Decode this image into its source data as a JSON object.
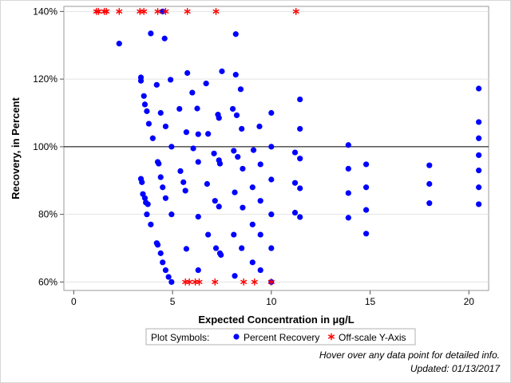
{
  "chart_data": {
    "type": "scatter",
    "xlabel": "Expected Concentration in µg/L",
    "ylabel": "Recovery, in Percent",
    "xlim": [
      -0.5,
      21
    ],
    "ylim": [
      57.5,
      141.5
    ],
    "x_ticks": [
      0,
      5,
      10,
      15,
      20
    ],
    "x_tick_labels": [
      "0",
      "5",
      "10",
      "15",
      "20"
    ],
    "y_ticks": [
      60,
      80,
      100,
      120,
      140
    ],
    "y_tick_labels": [
      "60%",
      "80%",
      "100%",
      "120%",
      "140%"
    ],
    "reference_line_y": 100,
    "grid": "horizontal",
    "legend": {
      "title": "Plot Symbols:",
      "placement": "bottom-center",
      "entries": [
        {
          "label": "Percent Recovery",
          "marker": "circle",
          "color": "#0000ff"
        },
        {
          "label": "Off-scale Y-Axis",
          "marker": "asterisk",
          "color": "#ff0000"
        }
      ]
    },
    "series": [
      {
        "name": "Percent Recovery",
        "marker": "circle",
        "color": "#0000ff",
        "points": [
          [
            2.3,
            130.5
          ],
          [
            3.4,
            120.5
          ],
          [
            3.4,
            119.5
          ],
          [
            3.55,
            115
          ],
          [
            3.6,
            112.5
          ],
          [
            3.7,
            110.5
          ],
          [
            3.8,
            106.8
          ],
          [
            3.9,
            133.5
          ],
          [
            4.0,
            102.5
          ],
          [
            3.4,
            90.5
          ],
          [
            3.45,
            89.5
          ],
          [
            3.5,
            86
          ],
          [
            3.6,
            84.8
          ],
          [
            3.65,
            83.5
          ],
          [
            3.7,
            80
          ],
          [
            3.75,
            83
          ],
          [
            3.9,
            77
          ],
          [
            4.2,
            71.5
          ],
          [
            4.25,
            71
          ],
          [
            4.4,
            68.5
          ],
          [
            4.5,
            65.8
          ],
          [
            4.65,
            63.5
          ],
          [
            4.8,
            61.5
          ],
          [
            4.95,
            60
          ],
          [
            4.25,
            95.5
          ],
          [
            4.3,
            95
          ],
          [
            4.4,
            91
          ],
          [
            4.5,
            88
          ],
          [
            4.65,
            84.8
          ],
          [
            4.2,
            118.3
          ],
          [
            4.4,
            110
          ],
          [
            4.6,
            132
          ],
          [
            4.65,
            106
          ],
          [
            4.9,
            119.8
          ],
          [
            4.95,
            100
          ],
          [
            4.95,
            80
          ],
          [
            4.5,
            140
          ],
          [
            5.35,
            111.2
          ],
          [
            5.4,
            92.8
          ],
          [
            5.55,
            89.5
          ],
          [
            5.65,
            87
          ],
          [
            5.7,
            104.3
          ],
          [
            5.75,
            121.8
          ],
          [
            5.7,
            69.8
          ],
          [
            6.0,
            116
          ],
          [
            6.05,
            99.5
          ],
          [
            6.25,
            111.3
          ],
          [
            6.3,
            103.7
          ],
          [
            6.3,
            95.5
          ],
          [
            6.3,
            79.3
          ],
          [
            6.3,
            63.5
          ],
          [
            6.7,
            118.7
          ],
          [
            6.8,
            103.8
          ],
          [
            6.75,
            89
          ],
          [
            6.8,
            74
          ],
          [
            7.1,
            98
          ],
          [
            7.15,
            84
          ],
          [
            7.2,
            70
          ],
          [
            7.3,
            109.5
          ],
          [
            7.35,
            108.5
          ],
          [
            7.35,
            96
          ],
          [
            7.4,
            95
          ],
          [
            7.35,
            82.3
          ],
          [
            7.4,
            68.5
          ],
          [
            7.45,
            68
          ],
          [
            7.5,
            122.3
          ],
          [
            8.05,
            111.2
          ],
          [
            8.1,
            98.8
          ],
          [
            8.15,
            86.5
          ],
          [
            8.1,
            74
          ],
          [
            8.15,
            61.8
          ],
          [
            8.2,
            133.3
          ],
          [
            8.2,
            121.3
          ],
          [
            8.25,
            109.3
          ],
          [
            8.3,
            97
          ],
          [
            8.45,
            117
          ],
          [
            8.5,
            105.3
          ],
          [
            8.55,
            93.5
          ],
          [
            8.55,
            82
          ],
          [
            8.5,
            70
          ],
          [
            9.1,
            99
          ],
          [
            9.05,
            88
          ],
          [
            9.05,
            77
          ],
          [
            9.05,
            65.8
          ],
          [
            9.4,
            106
          ],
          [
            9.45,
            94.8
          ],
          [
            9.45,
            84
          ],
          [
            9.45,
            74
          ],
          [
            9.45,
            63.5
          ],
          [
            10.0,
            110
          ],
          [
            10.0,
            100
          ],
          [
            10.0,
            90.3
          ],
          [
            10.0,
            80
          ],
          [
            10.0,
            70
          ],
          [
            10.0,
            60
          ],
          [
            11.2,
            98.3
          ],
          [
            11.2,
            89.3
          ],
          [
            11.2,
            80.5
          ],
          [
            11.45,
            114
          ],
          [
            11.45,
            105.3
          ],
          [
            11.45,
            96.5
          ],
          [
            11.45,
            87.7
          ],
          [
            11.45,
            79.2
          ],
          [
            13.9,
            100.5
          ],
          [
            13.9,
            93.5
          ],
          [
            13.9,
            86.3
          ],
          [
            13.9,
            79
          ],
          [
            14.8,
            94.8
          ],
          [
            14.8,
            88
          ],
          [
            14.8,
            81.3
          ],
          [
            14.8,
            74.3
          ],
          [
            18.0,
            94.5
          ],
          [
            18.0,
            89
          ],
          [
            18.0,
            83.3
          ],
          [
            20.5,
            117.2
          ],
          [
            20.5,
            107.3
          ],
          [
            20.5,
            102.5
          ],
          [
            20.5,
            97.5
          ],
          [
            20.5,
            93
          ],
          [
            20.5,
            88
          ],
          [
            20.5,
            83
          ]
        ]
      },
      {
        "name": "Off-scale Y-Axis",
        "marker": "asterisk",
        "color": "#ff0000",
        "points": [
          [
            1.15,
            140
          ],
          [
            1.25,
            140
          ],
          [
            1.55,
            140
          ],
          [
            1.65,
            140
          ],
          [
            2.3,
            140
          ],
          [
            3.35,
            140
          ],
          [
            3.55,
            140
          ],
          [
            4.25,
            140
          ],
          [
            4.65,
            140
          ],
          [
            5.75,
            140
          ],
          [
            7.2,
            140
          ],
          [
            11.25,
            140
          ],
          [
            5.65,
            60
          ],
          [
            5.85,
            60
          ],
          [
            6.15,
            60
          ],
          [
            6.35,
            60
          ],
          [
            7.15,
            60
          ],
          [
            8.6,
            60
          ],
          [
            9.15,
            60
          ],
          [
            10.0,
            60
          ]
        ]
      }
    ]
  },
  "footnotes": {
    "hover": "Hover over any data point for detailed info.",
    "updated": "Updated: 01/13/2017"
  }
}
